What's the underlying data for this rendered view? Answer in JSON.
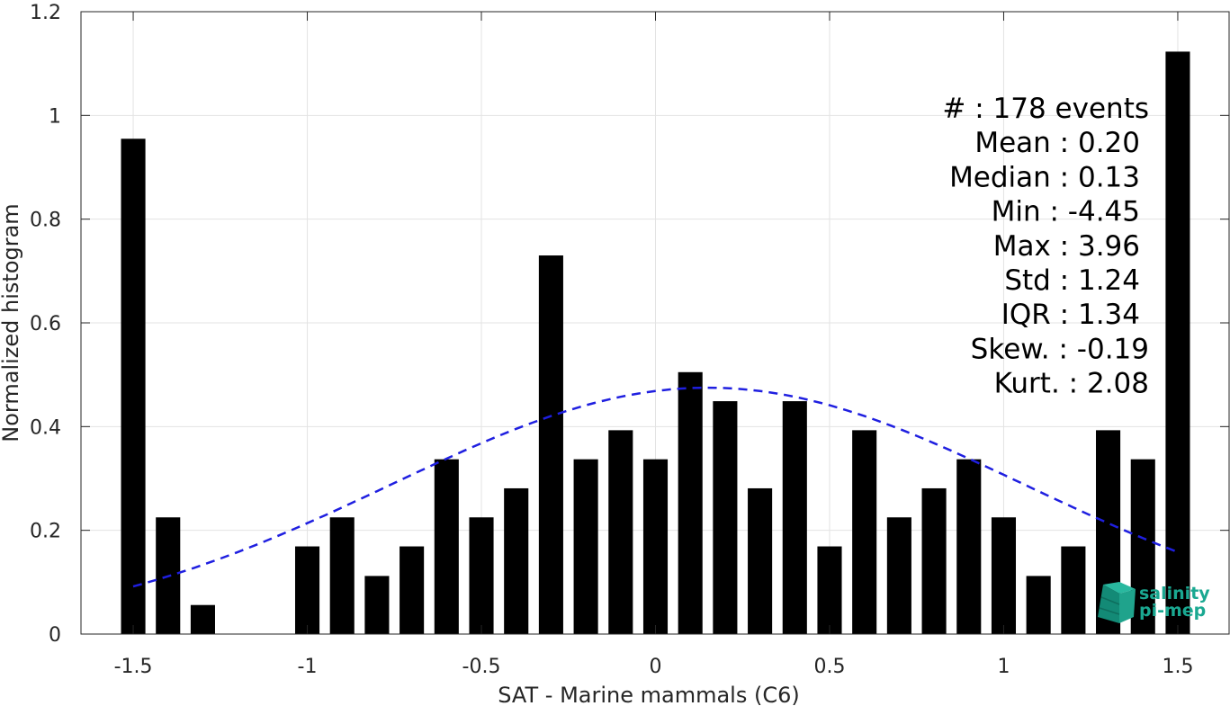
{
  "chart_data": {
    "type": "bar",
    "xlabel": "SAT - Marine mammals (C6)",
    "ylabel": "Normalized histogram",
    "xlim": [
      -1.65,
      1.65
    ],
    "ylim": [
      0,
      1.2
    ],
    "grid": true,
    "xticks": [
      -1.5,
      -1,
      -0.5,
      0,
      0.5,
      1,
      1.5
    ],
    "xtick_labels": [
      "-1.5",
      "-1",
      "-0.5",
      "0",
      "0.5",
      "1",
      "1.5"
    ],
    "yticks": [
      0,
      0.2,
      0.4,
      0.6,
      0.8,
      1,
      1.2
    ],
    "ytick_labels": [
      "0",
      "0.2",
      "0.4",
      "0.6",
      "0.8",
      "1",
      "1.2"
    ],
    "bar_color": "#000000",
    "categories": [
      -1.5,
      -1.4,
      -1.3,
      -1.2,
      -1.1,
      -1.0,
      -0.9,
      -0.8,
      -0.7,
      -0.6,
      -0.5,
      -0.4,
      -0.3,
      -0.2,
      -0.1,
      0.0,
      0.1,
      0.2,
      0.3,
      0.4,
      0.5,
      0.6,
      0.7,
      0.8,
      0.9,
      1.0,
      1.1,
      1.2,
      1.3,
      1.4,
      1.5
    ],
    "values": [
      0.955,
      0.225,
      0.056,
      0,
      0,
      0.169,
      0.225,
      0.112,
      0.169,
      0.337,
      0.225,
      0.281,
      0.73,
      0.337,
      0.393,
      0.337,
      0.505,
      0.449,
      0.281,
      0.449,
      0.169,
      0.393,
      0.225,
      0.281,
      0.337,
      0.225,
      0.112,
      0.169,
      0.393,
      0.337,
      1.123
    ],
    "fit_curve": {
      "style": "dashed",
      "color": "#1f1fe0",
      "distribution": "normal",
      "mean": 0.15,
      "amplitude": 0.475,
      "sigma": 0.91,
      "x_range": [
        -1.5,
        1.5
      ]
    },
    "stats_lines": [
      "#  : 178 events",
      "Mean : 0.20",
      "Median : 0.13",
      "Min : -4.45",
      "Max : 3.96",
      "Std : 1.24",
      "IQR : 1.34",
      "Skew. : -0.19",
      "Kurt. : 2.08"
    ],
    "logo": {
      "line1": "salinity",
      "line2": "pi-mep",
      "color": "#1aa891"
    }
  }
}
